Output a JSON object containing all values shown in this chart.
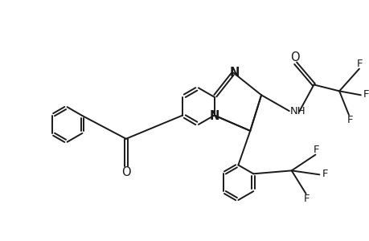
{
  "bg_color": "#ffffff",
  "line_color": "#1a1a1a",
  "line_width": 1.4,
  "font_size": 9.5,
  "xlim": [
    0,
    9.2
  ],
  "ylim": [
    0,
    6.0
  ]
}
